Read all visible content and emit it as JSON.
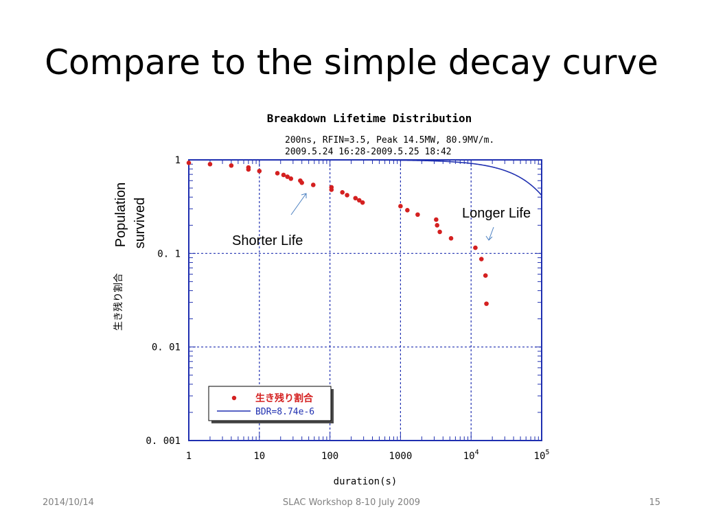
{
  "slide": {
    "title": "Compare to the simple decay curve",
    "footer_date": "2014/10/14",
    "footer_center": "SLAC Workshop 8-10 July 2009",
    "page_number": "15"
  },
  "chart_data": {
    "type": "scatter",
    "title": "Breakdown Lifetime Distribution",
    "subtitle_lines": [
      "200ns, RFIN=3.5, Peak 14.5MW, 80.9MV/m.",
      "2009.5.24 16:28-2009.5.25 18:42"
    ],
    "xlabel": "duration(s)",
    "ylabel": "生き残り割合",
    "x_scale": "log",
    "y_scale": "log",
    "xlim": [
      1,
      100000
    ],
    "ylim": [
      0.001,
      1
    ],
    "x_ticks": [
      {
        "value": 1,
        "label": "1"
      },
      {
        "value": 10,
        "label": "10"
      },
      {
        "value": 100,
        "label": "100"
      },
      {
        "value": 1000,
        "label": "1000"
      },
      {
        "value": 10000,
        "label": "10",
        "sup": "4"
      },
      {
        "value": 100000,
        "label": "10",
        "sup": "5"
      }
    ],
    "y_ticks": [
      {
        "value": 1,
        "label": "1"
      },
      {
        "value": 0.1,
        "label": "0. 1"
      },
      {
        "value": 0.01,
        "label": "0. 01"
      },
      {
        "value": 0.001,
        "label": "0. 001"
      }
    ],
    "grid": true,
    "legend_position": "bottom-left",
    "series": [
      {
        "name": "生き残り割合",
        "kind": "points",
        "color": "#d42020",
        "points": [
          {
            "x": 1,
            "y": 0.93
          },
          {
            "x": 2,
            "y": 0.9
          },
          {
            "x": 4,
            "y": 0.87
          },
          {
            "x": 7,
            "y": 0.83
          },
          {
            "x": 7,
            "y": 0.79
          },
          {
            "x": 10,
            "y": 0.76
          },
          {
            "x": 18,
            "y": 0.72
          },
          {
            "x": 22,
            "y": 0.69
          },
          {
            "x": 25,
            "y": 0.66
          },
          {
            "x": 28,
            "y": 0.63
          },
          {
            "x": 38,
            "y": 0.6
          },
          {
            "x": 40,
            "y": 0.57
          },
          {
            "x": 58,
            "y": 0.54
          },
          {
            "x": 105,
            "y": 0.51
          },
          {
            "x": 105,
            "y": 0.48
          },
          {
            "x": 150,
            "y": 0.45
          },
          {
            "x": 175,
            "y": 0.42
          },
          {
            "x": 230,
            "y": 0.39
          },
          {
            "x": 260,
            "y": 0.37
          },
          {
            "x": 290,
            "y": 0.35
          },
          {
            "x": 1000,
            "y": 0.32
          },
          {
            "x": 1250,
            "y": 0.29
          },
          {
            "x": 1750,
            "y": 0.26
          },
          {
            "x": 3200,
            "y": 0.23
          },
          {
            "x": 3300,
            "y": 0.2
          },
          {
            "x": 3600,
            "y": 0.17
          },
          {
            "x": 5200,
            "y": 0.145
          },
          {
            "x": 11500,
            "y": 0.115
          },
          {
            "x": 14000,
            "y": 0.087
          },
          {
            "x": 16000,
            "y": 0.058
          },
          {
            "x": 16500,
            "y": 0.029
          }
        ]
      },
      {
        "name": "BDR=8.74e-6",
        "kind": "curve",
        "color": "#1f2fb0",
        "rate": 8.74e-06
      }
    ],
    "annotations": [
      {
        "text": "Population",
        "orientation": "vertical"
      },
      {
        "text": "survived",
        "orientation": "vertical"
      },
      {
        "text": "Shorter Life"
      },
      {
        "text": "Longer Life"
      }
    ]
  }
}
